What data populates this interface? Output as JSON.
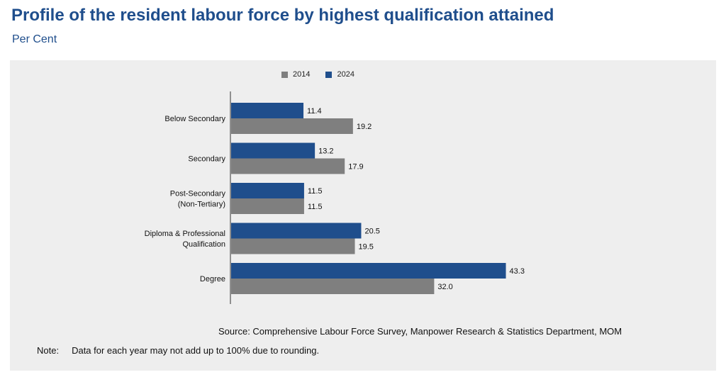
{
  "title": "Profile of the resident labour force by highest qualification attained",
  "subtitle": "Per Cent",
  "source": "Source: Comprehensive Labour Force Survey, Manpower Research & Statistics Department, MOM",
  "note": {
    "label": "Note:",
    "text": "Data for each year may not add up to 100% due to rounding."
  },
  "colors": {
    "series_2014": "#7f7f7f",
    "series_2024": "#1f4e8c",
    "panel": "#eeeeee",
    "title": "#1f4e8c"
  },
  "chart_data": {
    "type": "bar",
    "orientation": "horizontal",
    "categories": [
      [
        "Below Secondary"
      ],
      [
        "Secondary"
      ],
      [
        "Post-Secondary",
        "(Non-Tertiary)"
      ],
      [
        "Diploma & Professional",
        "Qualification"
      ],
      [
        "Degree"
      ]
    ],
    "series": [
      {
        "name": "2014",
        "values": [
          19.2,
          17.9,
          11.5,
          19.5,
          32.0
        ],
        "labels": [
          "19.2",
          "17.9",
          "11.5",
          "19.5",
          "32.0"
        ]
      },
      {
        "name": "2024",
        "values": [
          11.4,
          13.2,
          11.5,
          20.5,
          43.3
        ],
        "labels": [
          "11.4",
          "13.2",
          "11.5",
          "20.5",
          "43.3"
        ]
      }
    ],
    "legend_position": "top",
    "grid": false
  }
}
